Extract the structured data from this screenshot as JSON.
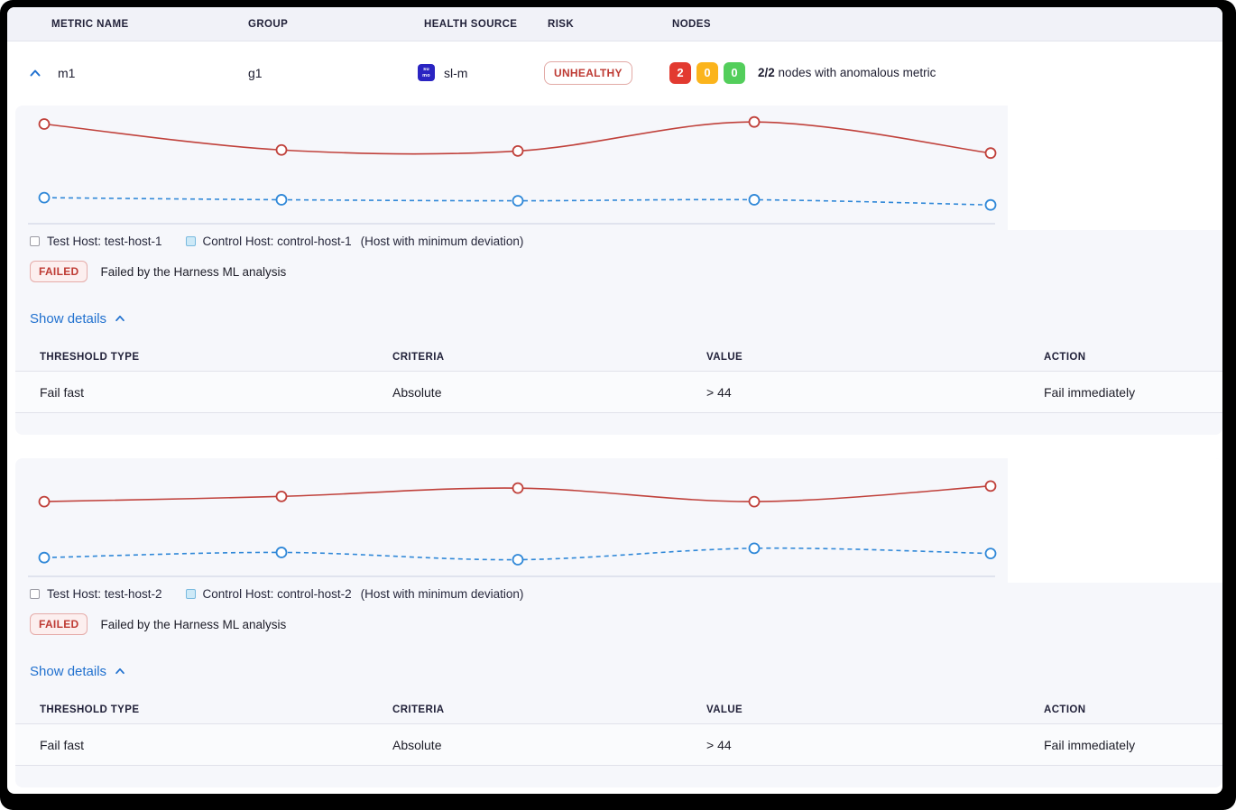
{
  "header": {
    "columns": [
      "METRIC NAME",
      "GROUP",
      "HEALTH SOURCE",
      "RISK",
      "NODES"
    ]
  },
  "metric_row": {
    "metric_name": "m1",
    "group": "g1",
    "health_source": {
      "icon": "sumologic-icon",
      "icon_line1": "su",
      "icon_line2": "mo",
      "label": "sl-m"
    },
    "risk_badge": "UNHEALTHY",
    "nodes": {
      "counts": [
        {
          "value": "2",
          "color": "#E23A30",
          "meaning": "unhealthy"
        },
        {
          "value": "0",
          "color": "#FBB41C",
          "meaning": "warning"
        },
        {
          "value": "0",
          "color": "#53CE5B",
          "meaning": "healthy"
        }
      ],
      "ratio": "2/2",
      "text": "nodes with anomalous metric"
    }
  },
  "sections": [
    {
      "legend": {
        "test_label": "Test Host: test-host-1",
        "control_label": "Control Host: control-host-1",
        "note": "(Host with minimum deviation)"
      },
      "status": {
        "badge": "FAILED",
        "message": "Failed by the Harness ML analysis"
      },
      "details_toggle": "Show details",
      "table": {
        "headers": [
          "THRESHOLD TYPE",
          "CRITERIA",
          "VALUE",
          "ACTION"
        ],
        "rows": [
          [
            "Fail fast",
            "Absolute",
            "> 44",
            "Fail immediately"
          ]
        ]
      }
    },
    {
      "legend": {
        "test_label": "Test Host: test-host-2",
        "control_label": "Control Host: control-host-2",
        "note": "(Host with minimum deviation)"
      },
      "status": {
        "badge": "FAILED",
        "message": "Failed by the Harness ML analysis"
      },
      "details_toggle": "Show details",
      "table": {
        "headers": [
          "THRESHOLD TYPE",
          "CRITERIA",
          "VALUE",
          "ACTION"
        ],
        "rows": [
          [
            "Fail fast",
            "Absolute",
            "> 44",
            "Fail immediately"
          ]
        ]
      }
    }
  ],
  "chart_data": [
    {
      "type": "line",
      "x": [
        1,
        2,
        3,
        4,
        5
      ],
      "series": [
        {
          "name": "Test Host: test-host-1",
          "color": "#C0413B",
          "style": "solid",
          "values": [
            90,
            65,
            64,
            92,
            62
          ]
        },
        {
          "name": "Control Host: control-host-1",
          "color": "#3088D8",
          "style": "dashed",
          "values": [
            19,
            17,
            16,
            17,
            12
          ]
        }
      ],
      "title": "",
      "xlabel": "",
      "ylabel": "",
      "ylim": [
        0,
        100
      ],
      "grid": false,
      "legend_position": "below",
      "markers": "open-circle",
      "note": "values estimated from pixel positions; no axis tick labels shown"
    },
    {
      "type": "line",
      "x": [
        1,
        2,
        3,
        4,
        5
      ],
      "series": [
        {
          "name": "Test Host: test-host-2",
          "color": "#C0413B",
          "style": "solid",
          "values": [
            66,
            71,
            79,
            66,
            81
          ]
        },
        {
          "name": "Control Host: control-host-2",
          "color": "#3088D8",
          "style": "dashed",
          "values": [
            12,
            17,
            10,
            21,
            16
          ]
        }
      ],
      "title": "",
      "xlabel": "",
      "ylabel": "",
      "ylim": [
        0,
        100
      ],
      "grid": false,
      "legend_position": "below",
      "markers": "open-circle",
      "note": "values estimated from pixel positions; no axis tick labels shown"
    }
  ],
  "colors": {
    "test_line": "#C0413B",
    "control_line": "#3088D8",
    "risk_red": "#BE3A33",
    "node_red": "#E23A30",
    "node_amber": "#FBB41C",
    "node_green": "#53CE5B",
    "link_blue": "#2171CF",
    "card_bg": "#F6F7FB",
    "header_bg": "#F1F2F8",
    "sumo_blue": "#2A24C2"
  }
}
